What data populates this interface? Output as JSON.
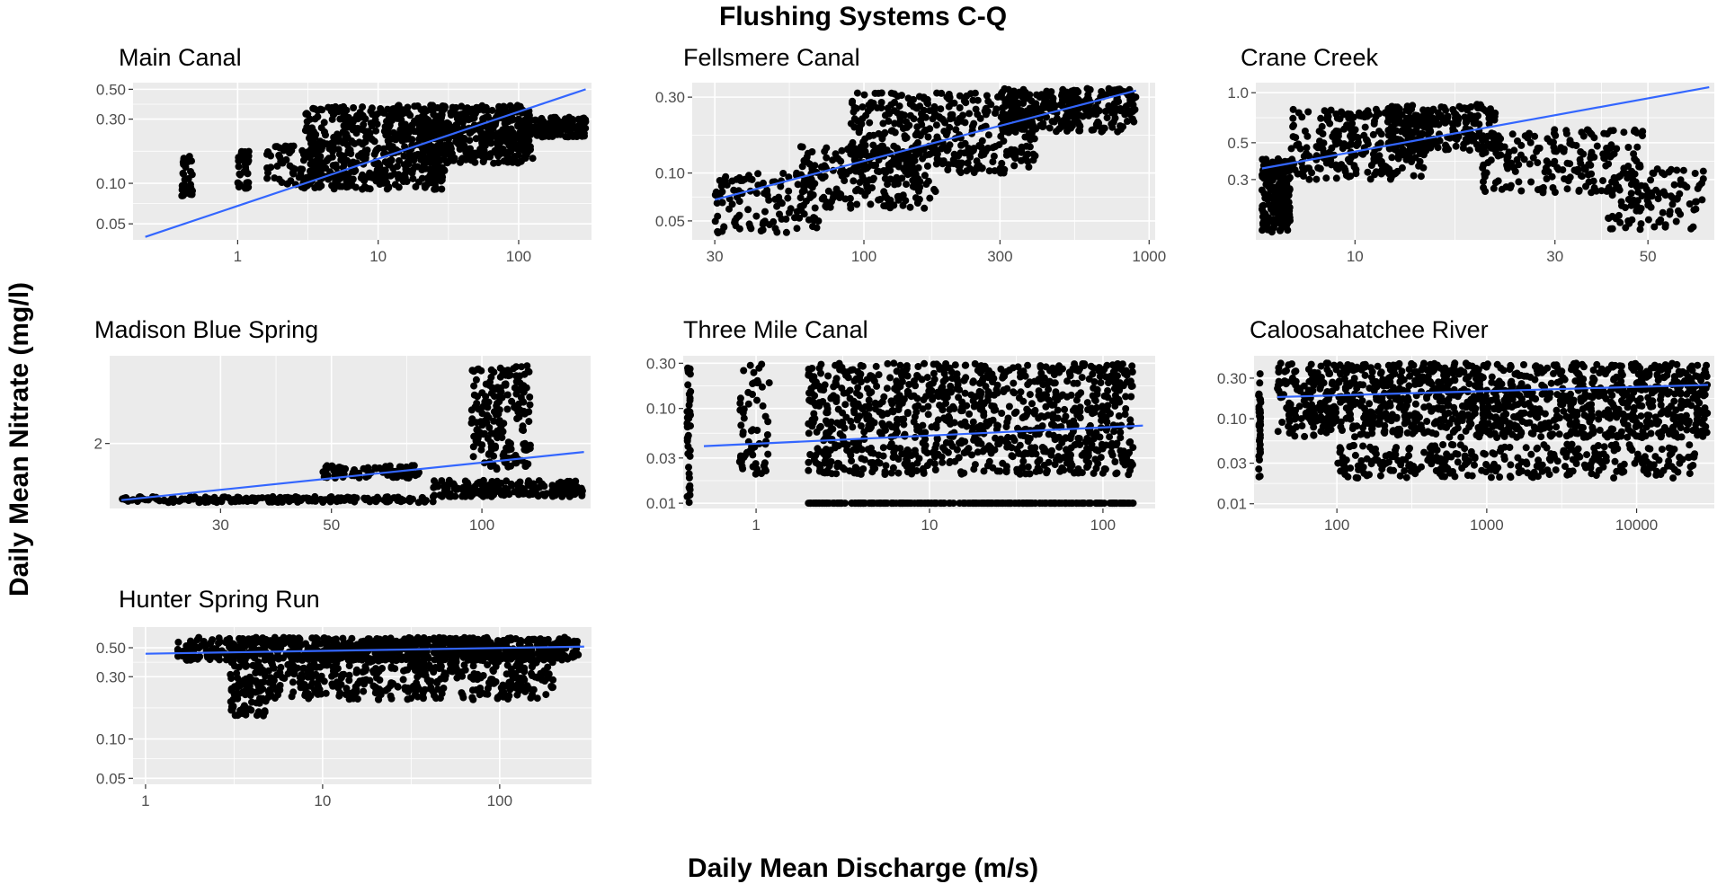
{
  "figure": {
    "title": "Flushing Systems C-Q",
    "ylabel": "Daily Mean Nitrate (mg/l)",
    "xlabel": "Daily Mean Discharge (m/s)"
  },
  "colors": {
    "panel_bg": "#ebebeb",
    "grid": "#ffffff",
    "points": "#000000",
    "fit": "#3366ff",
    "tick_text": "#4d4d4d"
  },
  "chart_data": [
    {
      "type": "scatter",
      "title": "Main Canal",
      "xscale": "log",
      "yscale": "log",
      "xlim": [
        0.18,
        330
      ],
      "ylim": [
        0.038,
        0.56
      ],
      "xticks": [
        {
          "v": 1,
          "label": "1"
        },
        {
          "v": 10,
          "label": "10"
        },
        {
          "v": 100,
          "label": "100"
        }
      ],
      "yticks": [
        {
          "v": 0.05,
          "label": "0.05"
        },
        {
          "v": 0.1,
          "label": "0.10"
        },
        {
          "v": 0.3,
          "label": "0.30"
        },
        {
          "v": 0.5,
          "label": "0.50"
        }
      ],
      "fit": {
        "x": [
          0.22,
          300
        ],
        "y": [
          0.04,
          0.5
        ]
      },
      "clusters": [
        {
          "x": [
            0.4,
            0.48
          ],
          "y": [
            0.08,
            0.17
          ],
          "n": 40
        },
        {
          "x": [
            1.0,
            1.2
          ],
          "y": [
            0.09,
            0.18
          ],
          "n": 40
        },
        {
          "x": [
            1.6,
            4
          ],
          "y": [
            0.09,
            0.19
          ],
          "n": 80
        },
        {
          "x": [
            3,
            30
          ],
          "y": [
            0.09,
            0.38
          ],
          "n": 500
        },
        {
          "x": [
            20,
            130
          ],
          "y": [
            0.14,
            0.38
          ],
          "n": 400
        },
        {
          "x": [
            100,
            300
          ],
          "y": [
            0.22,
            0.31
          ],
          "n": 150
        }
      ]
    },
    {
      "type": "scatter",
      "title": "Fellsmere Canal",
      "xscale": "log",
      "yscale": "log",
      "xlim": [
        25,
        1050
      ],
      "ylim": [
        0.038,
        0.37
      ],
      "xticks": [
        {
          "v": 30,
          "label": "30"
        },
        {
          "v": 100,
          "label": "100"
        },
        {
          "v": 300,
          "label": "300"
        },
        {
          "v": 1000,
          "label": "1000"
        }
      ],
      "yticks": [
        {
          "v": 0.05,
          "label": "0.05"
        },
        {
          "v": 0.1,
          "label": "0.10"
        },
        {
          "v": 0.3,
          "label": "0.30"
        }
      ],
      "fit": {
        "x": [
          30,
          900
        ],
        "y": [
          0.068,
          0.33
        ]
      },
      "clusters": [
        {
          "x": [
            30,
            70
          ],
          "y": [
            0.042,
            0.1
          ],
          "n": 120
        },
        {
          "x": [
            60,
            180
          ],
          "y": [
            0.06,
            0.15
          ],
          "n": 200
        },
        {
          "x": [
            90,
            400
          ],
          "y": [
            0.1,
            0.32
          ],
          "n": 400
        },
        {
          "x": [
            300,
            900
          ],
          "y": [
            0.18,
            0.34
          ],
          "n": 300
        }
      ]
    },
    {
      "type": "scatter",
      "title": "Crane Creek",
      "xscale": "log",
      "yscale": "log",
      "xlim": [
        5.8,
        72
      ],
      "ylim": [
        0.13,
        1.15
      ],
      "xticks": [
        {
          "v": 10,
          "label": "10"
        },
        {
          "v": 30,
          "label": "30"
        },
        {
          "v": 50,
          "label": "50"
        }
      ],
      "yticks": [
        {
          "v": 0.3,
          "label": "0.3"
        },
        {
          "v": 0.5,
          "label": "0.5"
        },
        {
          "v": 1.0,
          "label": "1.0"
        }
      ],
      "fit": {
        "x": [
          6,
          70
        ],
        "y": [
          0.35,
          1.08
        ]
      },
      "clusters": [
        {
          "x": [
            6,
            7
          ],
          "y": [
            0.14,
            0.4
          ],
          "n": 200
        },
        {
          "x": [
            7,
            15
          ],
          "y": [
            0.3,
            0.8
          ],
          "n": 300
        },
        {
          "x": [
            12,
            22
          ],
          "y": [
            0.45,
            0.85
          ],
          "n": 200
        },
        {
          "x": [
            20,
            50
          ],
          "y": [
            0.25,
            0.6
          ],
          "n": 200
        },
        {
          "x": [
            40,
            68
          ],
          "y": [
            0.15,
            0.35
          ],
          "n": 100
        }
      ]
    },
    {
      "type": "scatter",
      "title": "Madison Blue Spring",
      "xscale": "log",
      "yscale": "log",
      "xlim": [
        18,
        165
      ],
      "ylim": [
        1.35,
        3.4
      ],
      "xticks": [
        {
          "v": 30,
          "label": "30"
        },
        {
          "v": 50,
          "label": "50"
        },
        {
          "v": 100,
          "label": "100"
        }
      ],
      "yticks": [
        {
          "v": 2,
          "label": "2"
        }
      ],
      "fit": {
        "x": [
          19,
          160
        ],
        "y": [
          1.42,
          1.9
        ]
      },
      "clusters": [
        {
          "x": [
            19,
            80
          ],
          "y": [
            1.4,
            1.45
          ],
          "n": 200
        },
        {
          "x": [
            48,
            75
          ],
          "y": [
            1.62,
            1.75
          ],
          "n": 80
        },
        {
          "x": [
            80,
            160
          ],
          "y": [
            1.45,
            1.6
          ],
          "n": 200
        },
        {
          "x": [
            95,
            125
          ],
          "y": [
            1.7,
            3.2
          ],
          "n": 200
        }
      ]
    },
    {
      "type": "scatter",
      "title": "Three Mile Canal",
      "xscale": "log",
      "yscale": "log",
      "xlim": [
        0.38,
        200
      ],
      "ylim": [
        0.0088,
        0.36
      ],
      "xticks": [
        {
          "v": 1,
          "label": "1"
        },
        {
          "v": 10,
          "label": "10"
        },
        {
          "v": 100,
          "label": "100"
        }
      ],
      "yticks": [
        {
          "v": 0.01,
          "label": "0.01"
        },
        {
          "v": 0.03,
          "label": "0.03"
        },
        {
          "v": 0.1,
          "label": "0.10"
        },
        {
          "v": 0.3,
          "label": "0.30"
        }
      ],
      "fit": {
        "x": [
          0.5,
          170
        ],
        "y": [
          0.04,
          0.066
        ]
      },
      "clusters": [
        {
          "x": [
            0.4,
            0.42
          ],
          "y": [
            0.01,
            0.3
          ],
          "n": 40
        },
        {
          "x": [
            0.8,
            1.2
          ],
          "y": [
            0.02,
            0.3
          ],
          "n": 60
        },
        {
          "x": [
            2,
            150
          ],
          "y": [
            0.01,
            0.01
          ],
          "n": 250
        },
        {
          "x": [
            2,
            150
          ],
          "y": [
            0.02,
            0.3
          ],
          "n": 1000
        }
      ]
    },
    {
      "type": "scatter",
      "title": "Caloosahatchee River",
      "xscale": "log",
      "yscale": "log",
      "xlim": [
        28,
        33000
      ],
      "ylim": [
        0.0088,
        0.55
      ],
      "xticks": [
        {
          "v": 100,
          "label": "100"
        },
        {
          "v": 1000,
          "label": "1000"
        },
        {
          "v": 10000,
          "label": "10000"
        }
      ],
      "yticks": [
        {
          "v": 0.01,
          "label": "0.01"
        },
        {
          "v": 0.03,
          "label": "0.03"
        },
        {
          "v": 0.1,
          "label": "0.10"
        },
        {
          "v": 0.3,
          "label": "0.30"
        }
      ],
      "fit": {
        "x": [
          40,
          30000
        ],
        "y": [
          0.18,
          0.25
        ]
      },
      "clusters": [
        {
          "x": [
            30,
            31
          ],
          "y": [
            0.02,
            0.35
          ],
          "n": 40
        },
        {
          "x": [
            40,
            30000
          ],
          "y": [
            0.06,
            0.45
          ],
          "n": 1200
        },
        {
          "x": [
            100,
            25000
          ],
          "y": [
            0.02,
            0.05
          ],
          "n": 300
        }
      ]
    },
    {
      "type": "scatter",
      "title": "Hunter Spring Run",
      "xscale": "log",
      "yscale": "log",
      "xlim": [
        0.85,
        330
      ],
      "ylim": [
        0.045,
        0.72
      ],
      "xticks": [
        {
          "v": 1,
          "label": "1"
        },
        {
          "v": 10,
          "label": "10"
        },
        {
          "v": 100,
          "label": "100"
        }
      ],
      "yticks": [
        {
          "v": 0.05,
          "label": "0.05"
        },
        {
          "v": 0.1,
          "label": "0.10"
        },
        {
          "v": 0.3,
          "label": "0.30"
        },
        {
          "v": 0.5,
          "label": "0.50"
        }
      ],
      "fit": {
        "x": [
          1,
          300
        ],
        "y": [
          0.45,
          0.51
        ]
      },
      "clusters": [
        {
          "x": [
            1.5,
            280
          ],
          "y": [
            0.4,
            0.6
          ],
          "n": 800
        },
        {
          "x": [
            3,
            200
          ],
          "y": [
            0.2,
            0.45
          ],
          "n": 500
        },
        {
          "x": [
            3,
            5
          ],
          "y": [
            0.15,
            0.3
          ],
          "n": 60
        }
      ]
    }
  ]
}
